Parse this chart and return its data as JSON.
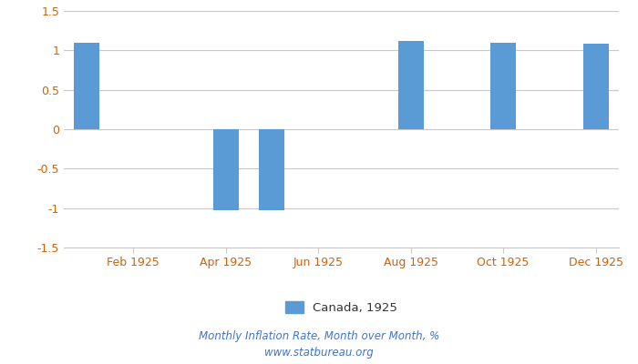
{
  "months": [
    1,
    2,
    3,
    4,
    5,
    6,
    7,
    8,
    9,
    10,
    11,
    12
  ],
  "values": [
    1.1,
    null,
    null,
    -1.03,
    -1.03,
    null,
    null,
    1.12,
    null,
    1.1,
    null,
    1.09
  ],
  "bar_color": "#5B9BD5",
  "ylim": [
    -1.5,
    1.5
  ],
  "yticks": [
    -1.5,
    -1.0,
    -0.5,
    0.0,
    0.5,
    1.0,
    1.5
  ],
  "xtick_positions": [
    2,
    4,
    6,
    8,
    10,
    12
  ],
  "xtick_labels": [
    "Feb 1925",
    "Apr 1925",
    "Jun 1925",
    "Aug 1925",
    "Oct 1925",
    "Dec 1925"
  ],
  "legend_label": "Canada, 1925",
  "footnote_line1": "Monthly Inflation Rate, Month over Month, %",
  "footnote_line2": "www.statbureau.org",
  "background_color": "#ffffff",
  "grid_color": "#c8c8c8",
  "tick_color": "#c8640a",
  "footnote_color": "#4472C4",
  "bar_width": 0.55
}
